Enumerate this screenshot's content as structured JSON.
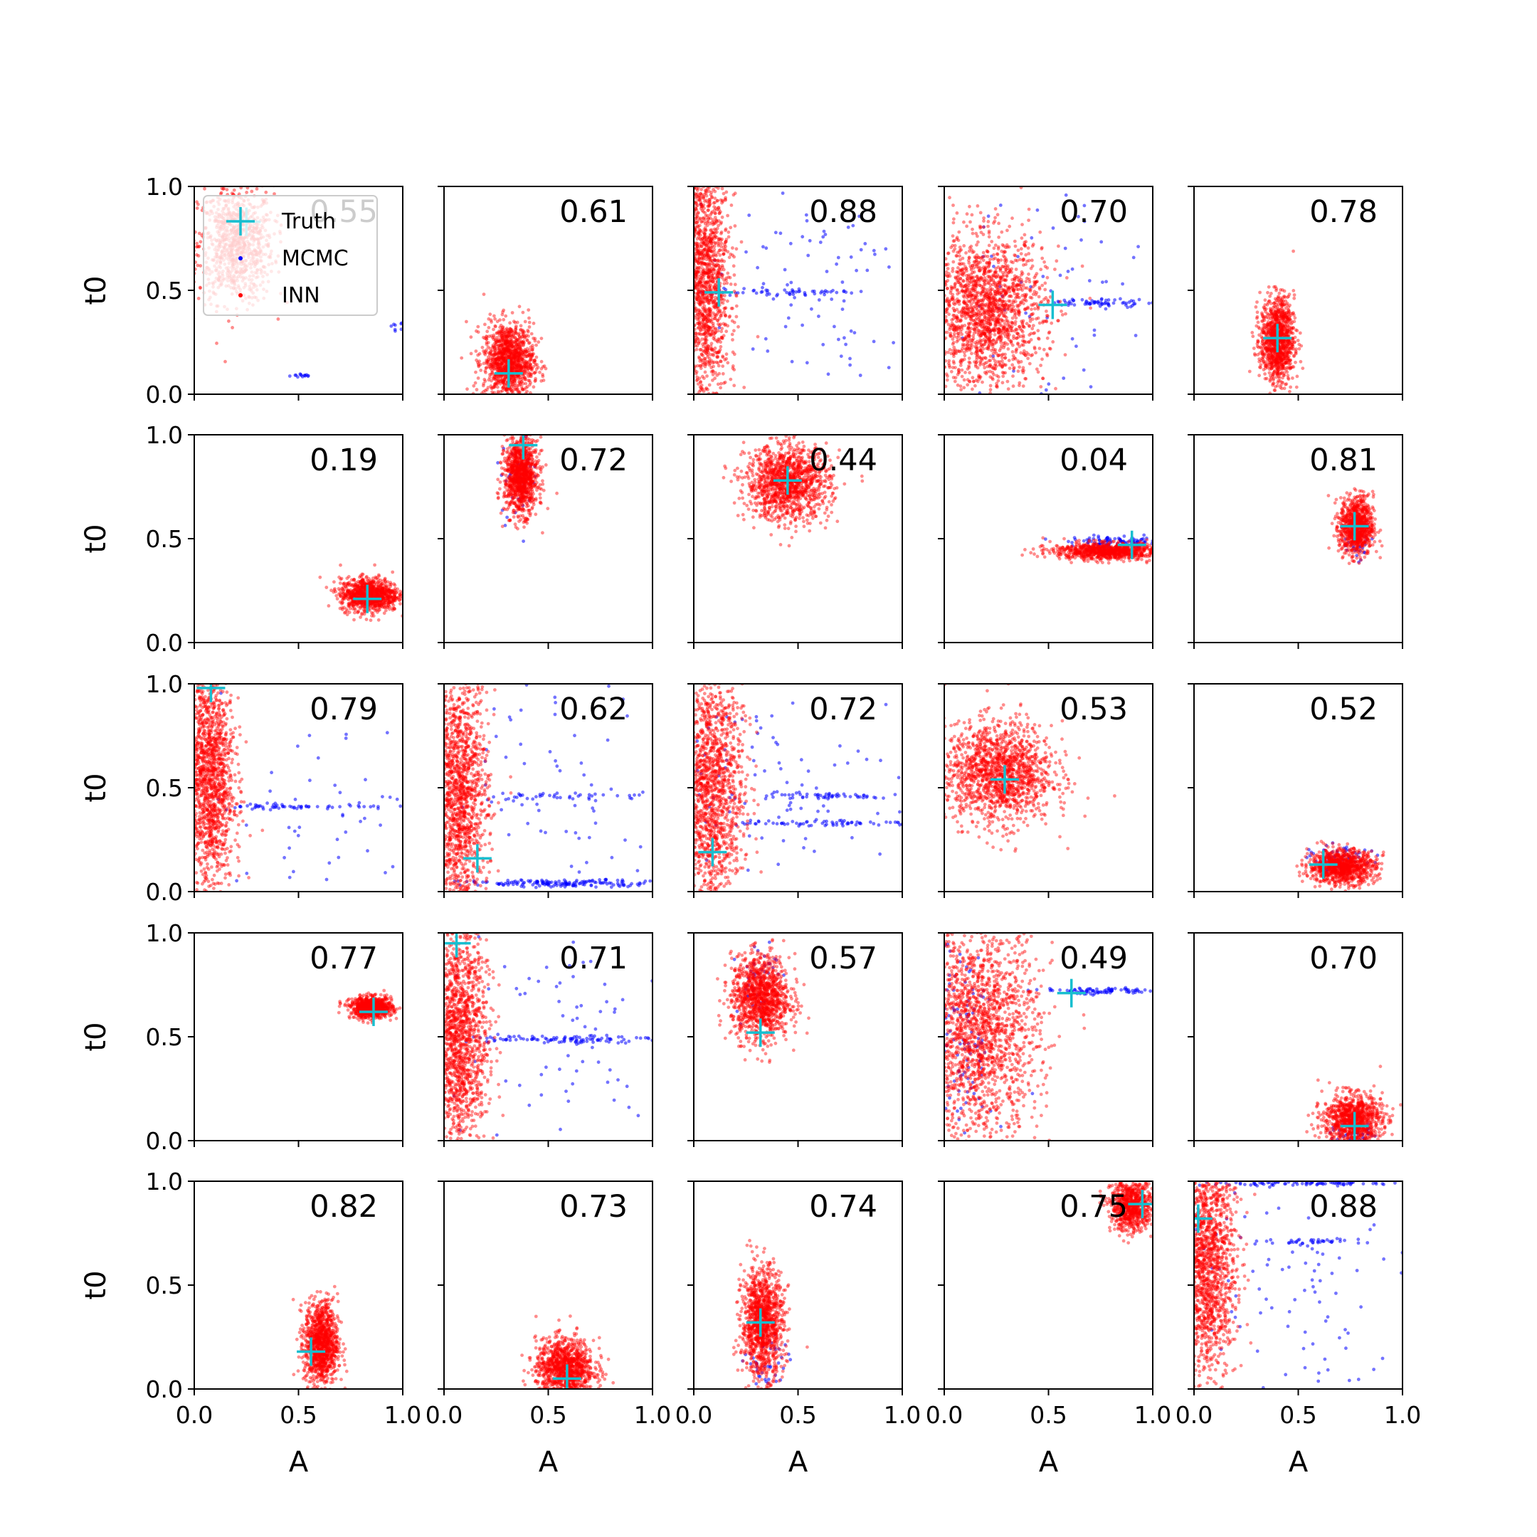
{
  "figure": {
    "x_label": "A",
    "y_label": "t0",
    "legend": {
      "placement": "top-left of first panel",
      "entries": [
        {
          "label": "Truth",
          "color": "#17becf",
          "marker": "plus"
        },
        {
          "label": "MCMC",
          "color": "#0000ff",
          "marker": "dot"
        },
        {
          "label": "INN",
          "color": "#ff0000",
          "marker": "dot"
        }
      ]
    },
    "colors": {
      "truth": "#17becf",
      "mcmc": "#0000ff",
      "inn": "#ff0000"
    }
  },
  "chart_data": {
    "type": "scatter",
    "layout": {
      "rows": 5,
      "cols": 5
    },
    "xlim": [
      0,
      1
    ],
    "ylim": [
      0,
      1
    ],
    "xticks": [
      0.0,
      0.5,
      1.0
    ],
    "yticks": [
      0.0,
      0.5,
      1.0
    ],
    "xtick_labels": [
      "0.0",
      "0.5",
      "1.0"
    ],
    "ytick_labels": [
      "0.0",
      "0.5",
      "1.0"
    ],
    "panels": [
      {
        "score": "0.55",
        "truth": [
          0.25,
          0.83
        ],
        "inn": {
          "cx": 0.2,
          "cy": 0.72,
          "sx": 0.09,
          "sy": 0.14,
          "n": 900
        },
        "mcmc": [
          {
            "cx": 0.52,
            "cy": 0.09,
            "sx": 0.03,
            "sy": 0.005,
            "n": 14
          },
          {
            "cx": 0.97,
            "cy": 0.33,
            "sx": 0.02,
            "sy": 0.01,
            "n": 8
          }
        ]
      },
      {
        "score": "0.61",
        "truth": [
          0.31,
          0.1
        ],
        "inn": {
          "cx": 0.31,
          "cy": 0.16,
          "sx": 0.06,
          "sy": 0.09,
          "n": 1200
        },
        "mcmc": []
      },
      {
        "score": "0.88",
        "truth": [
          0.12,
          0.49
        ],
        "inn": {
          "cx": 0.05,
          "cy": 0.55,
          "sx": 0.06,
          "sy": 0.3,
          "n": 1600
        },
        "mcmc": [
          {
            "cx": 0.45,
            "cy": 0.49,
            "sx": 0.2,
            "sy": 0.01,
            "n": 60
          },
          {
            "cx": 0.55,
            "cy": 0.5,
            "sx": 0.3,
            "sy": 0.3,
            "n": 90
          }
        ]
      },
      {
        "score": "0.70",
        "truth": [
          0.52,
          0.43
        ],
        "inn": {
          "cx": 0.2,
          "cy": 0.4,
          "sx": 0.14,
          "sy": 0.18,
          "n": 1800
        },
        "mcmc": [
          {
            "cx": 0.75,
            "cy": 0.44,
            "sx": 0.12,
            "sy": 0.01,
            "n": 60
          },
          {
            "cx": 0.5,
            "cy": 0.5,
            "sx": 0.3,
            "sy": 0.3,
            "n": 70
          }
        ]
      },
      {
        "score": "0.78",
        "truth": [
          0.4,
          0.27
        ],
        "inn": {
          "cx": 0.4,
          "cy": 0.26,
          "sx": 0.04,
          "sy": 0.1,
          "n": 1100
        },
        "mcmc": []
      },
      {
        "score": "0.19",
        "truth": [
          0.83,
          0.21
        ],
        "inn": {
          "cx": 0.84,
          "cy": 0.23,
          "sx": 0.07,
          "sy": 0.04,
          "n": 1000
        },
        "mcmc": []
      },
      {
        "score": "0.72",
        "truth": [
          0.38,
          0.95
        ],
        "inn": {
          "cx": 0.37,
          "cy": 0.8,
          "sx": 0.04,
          "sy": 0.09,
          "n": 1100
        },
        "mcmc": [
          {
            "cx": 0.35,
            "cy": 0.8,
            "sx": 0.05,
            "sy": 0.1,
            "n": 40
          }
        ]
      },
      {
        "score": "0.44",
        "truth": [
          0.45,
          0.78
        ],
        "inn": {
          "cx": 0.45,
          "cy": 0.77,
          "sx": 0.1,
          "sy": 0.09,
          "n": 1300
        },
        "mcmc": []
      },
      {
        "score": "0.04",
        "truth": [
          0.9,
          0.47
        ],
        "inn": {
          "cx": 0.78,
          "cy": 0.44,
          "sx": 0.13,
          "sy": 0.02,
          "n": 900
        },
        "mcmc": [
          {
            "cx": 0.85,
            "cy": 0.48,
            "sx": 0.12,
            "sy": 0.015,
            "n": 120
          }
        ]
      },
      {
        "score": "0.81",
        "truth": [
          0.77,
          0.56
        ],
        "inn": {
          "cx": 0.78,
          "cy": 0.56,
          "sx": 0.04,
          "sy": 0.07,
          "n": 900
        },
        "mcmc": [
          {
            "cx": 0.78,
            "cy": 0.5,
            "sx": 0.03,
            "sy": 0.05,
            "n": 40
          }
        ]
      },
      {
        "score": "0.79",
        "truth": [
          0.08,
          0.98
        ],
        "inn": {
          "cx": 0.07,
          "cy": 0.55,
          "sx": 0.06,
          "sy": 0.28,
          "n": 1600
        },
        "mcmc": [
          {
            "cx": 0.5,
            "cy": 0.41,
            "sx": 0.22,
            "sy": 0.006,
            "n": 60
          },
          {
            "cx": 0.55,
            "cy": 0.3,
            "sx": 0.3,
            "sy": 0.3,
            "n": 60
          }
        ]
      },
      {
        "score": "0.62",
        "truth": [
          0.16,
          0.16
        ],
        "inn": {
          "cx": 0.07,
          "cy": 0.45,
          "sx": 0.07,
          "sy": 0.3,
          "n": 1600
        },
        "mcmc": [
          {
            "cx": 0.6,
            "cy": 0.04,
            "sx": 0.25,
            "sy": 0.008,
            "n": 160
          },
          {
            "cx": 0.6,
            "cy": 0.46,
            "sx": 0.2,
            "sy": 0.01,
            "n": 40
          },
          {
            "cx": 0.6,
            "cy": 0.5,
            "sx": 0.3,
            "sy": 0.3,
            "n": 80
          }
        ]
      },
      {
        "score": "0.72",
        "truth": [
          0.09,
          0.19
        ],
        "inn": {
          "cx": 0.08,
          "cy": 0.5,
          "sx": 0.08,
          "sy": 0.3,
          "n": 1600
        },
        "mcmc": [
          {
            "cx": 0.55,
            "cy": 0.33,
            "sx": 0.25,
            "sy": 0.008,
            "n": 70
          },
          {
            "cx": 0.55,
            "cy": 0.46,
            "sx": 0.25,
            "sy": 0.008,
            "n": 60
          },
          {
            "cx": 0.5,
            "cy": 0.5,
            "sx": 0.3,
            "sy": 0.3,
            "n": 90
          }
        ]
      },
      {
        "score": "0.53",
        "truth": [
          0.29,
          0.54
        ],
        "inn": {
          "cx": 0.26,
          "cy": 0.57,
          "sx": 0.13,
          "sy": 0.12,
          "n": 1500
        },
        "mcmc": []
      },
      {
        "score": "0.52",
        "truth": [
          0.62,
          0.13
        ],
        "inn": {
          "cx": 0.71,
          "cy": 0.12,
          "sx": 0.08,
          "sy": 0.04,
          "n": 1000
        },
        "mcmc": [
          {
            "cx": 0.7,
            "cy": 0.16,
            "sx": 0.07,
            "sy": 0.03,
            "n": 60
          }
        ]
      },
      {
        "score": "0.77",
        "truth": [
          0.86,
          0.62
        ],
        "inn": {
          "cx": 0.85,
          "cy": 0.64,
          "sx": 0.05,
          "sy": 0.025,
          "n": 800
        },
        "mcmc": []
      },
      {
        "score": "0.71",
        "truth": [
          0.06,
          0.95
        ],
        "inn": {
          "cx": 0.07,
          "cy": 0.5,
          "sx": 0.07,
          "sy": 0.28,
          "n": 1600
        },
        "mcmc": [
          {
            "cx": 0.55,
            "cy": 0.49,
            "sx": 0.25,
            "sy": 0.01,
            "n": 110
          },
          {
            "cx": 0.5,
            "cy": 0.5,
            "sx": 0.3,
            "sy": 0.3,
            "n": 70
          }
        ]
      },
      {
        "score": "0.57",
        "truth": [
          0.32,
          0.52
        ],
        "inn": {
          "cx": 0.32,
          "cy": 0.69,
          "sx": 0.07,
          "sy": 0.1,
          "n": 1200
        },
        "mcmc": [
          {
            "cx": 0.3,
            "cy": 0.8,
            "sx": 0.05,
            "sy": 0.1,
            "n": 40
          }
        ]
      },
      {
        "score": "0.49",
        "truth": [
          0.61,
          0.71
        ],
        "inn": {
          "cx": 0.17,
          "cy": 0.52,
          "sx": 0.14,
          "sy": 0.25,
          "n": 1800
        },
        "mcmc": [
          {
            "cx": 0.75,
            "cy": 0.72,
            "sx": 0.15,
            "sy": 0.008,
            "n": 90
          },
          {
            "cx": 0.08,
            "cy": 0.5,
            "sx": 0.08,
            "sy": 0.3,
            "n": 120
          }
        ]
      },
      {
        "score": "0.70",
        "truth": [
          0.77,
          0.07
        ],
        "inn": {
          "cx": 0.76,
          "cy": 0.1,
          "sx": 0.07,
          "sy": 0.06,
          "n": 1000
        },
        "mcmc": [
          {
            "cx": 0.78,
            "cy": 0.03,
            "sx": 0.06,
            "sy": 0.02,
            "n": 40
          }
        ]
      },
      {
        "score": "0.82",
        "truth": [
          0.56,
          0.18
        ],
        "inn": {
          "cx": 0.61,
          "cy": 0.22,
          "sx": 0.04,
          "sy": 0.1,
          "n": 1100
        },
        "mcmc": []
      },
      {
        "score": "0.73",
        "truth": [
          0.59,
          0.05
        ],
        "inn": {
          "cx": 0.58,
          "cy": 0.1,
          "sx": 0.07,
          "sy": 0.07,
          "n": 1100
        },
        "mcmc": []
      },
      {
        "score": "0.74",
        "truth": [
          0.32,
          0.32
        ],
        "inn": {
          "cx": 0.33,
          "cy": 0.32,
          "sx": 0.05,
          "sy": 0.13,
          "n": 1200
        },
        "mcmc": [
          {
            "cx": 0.35,
            "cy": 0.1,
            "sx": 0.05,
            "sy": 0.08,
            "n": 40
          }
        ]
      },
      {
        "score": "0.75",
        "truth": [
          0.95,
          0.89
        ],
        "inn": {
          "cx": 0.9,
          "cy": 0.88,
          "sx": 0.05,
          "sy": 0.06,
          "n": 800
        },
        "mcmc": []
      },
      {
        "score": "0.88",
        "truth": [
          0.02,
          0.82
        ],
        "inn": {
          "cx": 0.06,
          "cy": 0.6,
          "sx": 0.07,
          "sy": 0.28,
          "n": 1600
        },
        "mcmc": [
          {
            "cx": 0.55,
            "cy": 0.99,
            "sx": 0.3,
            "sy": 0.005,
            "n": 90
          },
          {
            "cx": 0.5,
            "cy": 0.71,
            "sx": 0.15,
            "sy": 0.006,
            "n": 40
          },
          {
            "cx": 0.5,
            "cy": 0.5,
            "sx": 0.3,
            "sy": 0.3,
            "n": 100
          }
        ]
      }
    ]
  }
}
